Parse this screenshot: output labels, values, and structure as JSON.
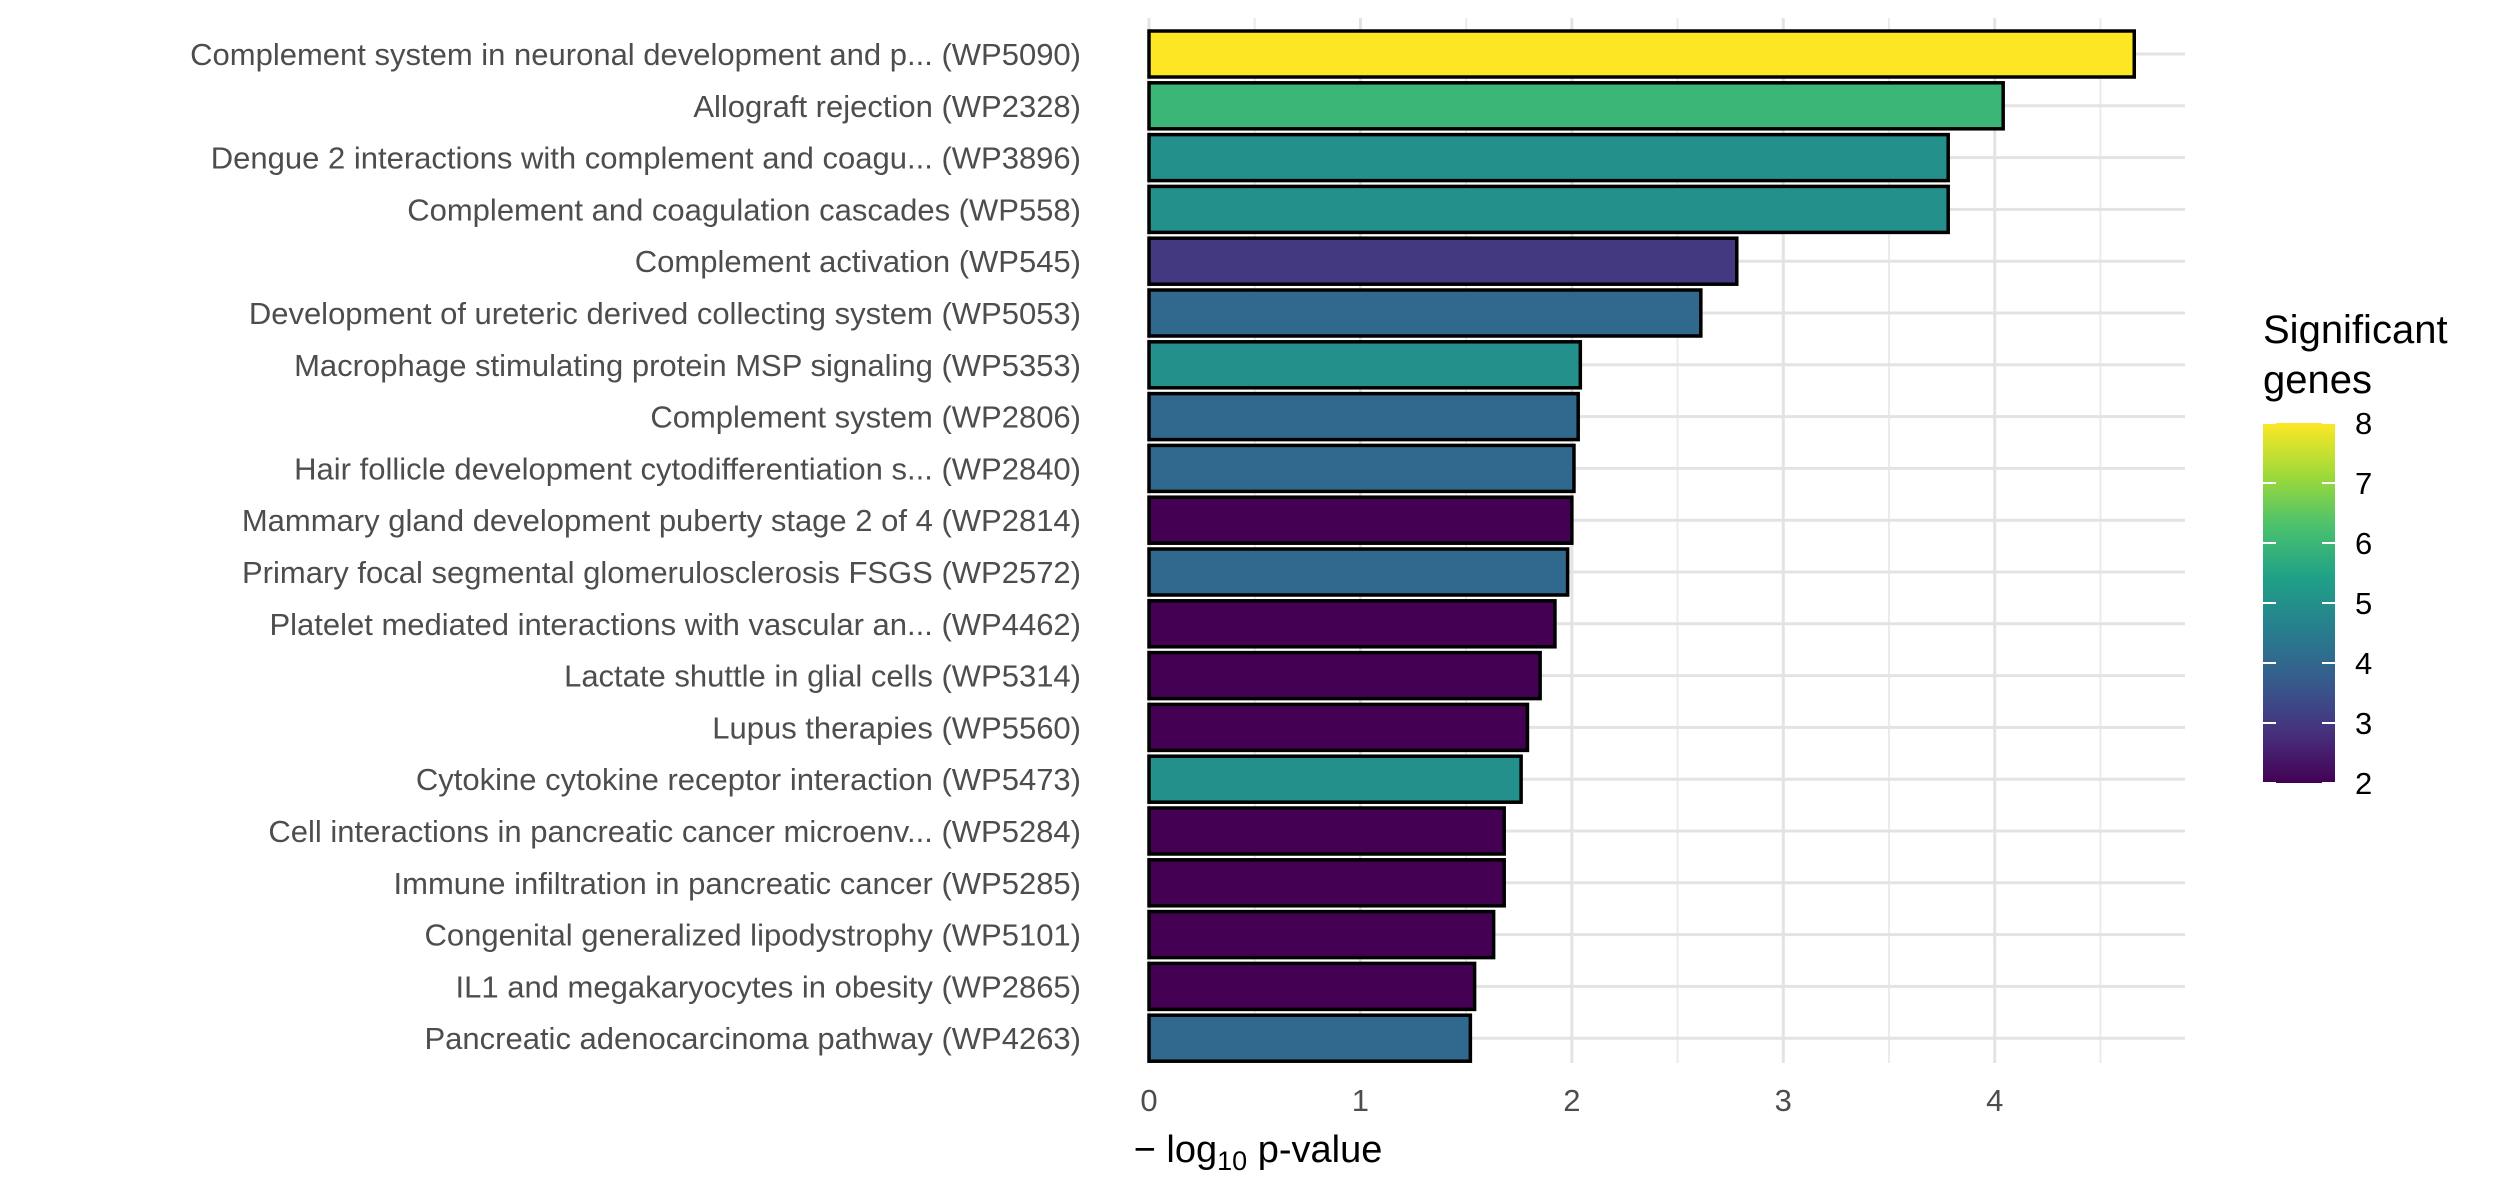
{
  "chart_data": {
    "type": "bar",
    "orientation": "horizontal",
    "categories": [
      "Complement system in neuronal development and p... (WP5090)",
      "Allograft rejection (WP2328)",
      "Dengue 2 interactions with complement and coagu... (WP3896)",
      "Complement and coagulation cascades (WP558)",
      "Complement activation (WP545)",
      "Development of ureteric derived collecting system (WP5053)",
      "Macrophage stimulating protein MSP signaling (WP5353)",
      "Complement system (WP2806)",
      "Hair follicle development cytodifferentiation s... (WP2840)",
      "Mammary gland development puberty stage 2 of 4 (WP2814)",
      "Primary focal segmental glomerulosclerosis FSGS  (WP2572)",
      "Platelet mediated interactions with vascular an... (WP4462)",
      "Lactate shuttle in glial cells (WP5314)",
      "Lupus therapies (WP5560)",
      "Cytokine cytokine receptor interaction (WP5473)",
      "Cell interactions in pancreatic cancer microenv... (WP5284)",
      "Immune infiltration in pancreatic cancer (WP5285)",
      "Congenital generalized lipodystrophy (WP5101)",
      "IL1 and megakaryocytes in obesity (WP2865)",
      "Pancreatic adenocarcinoma pathway (WP4263)"
    ],
    "values": [
      4.66,
      4.04,
      3.78,
      3.78,
      2.78,
      2.61,
      2.04,
      2.03,
      2.01,
      2.0,
      1.98,
      1.92,
      1.85,
      1.79,
      1.76,
      1.68,
      1.68,
      1.63,
      1.54,
      1.52
    ],
    "significant_genes": [
      8,
      6,
      5,
      5,
      3,
      4,
      5,
      4,
      4,
      2,
      4,
      2,
      2,
      2,
      5,
      2,
      2,
      2,
      2,
      4
    ],
    "xlabel_prefix": "− log",
    "xlabel_subscript": "10",
    "xlabel_suffix": " p-value",
    "ylabel": "",
    "xlim": [
      0,
      4.9
    ],
    "xticks": [
      0,
      1,
      2,
      3,
      4
    ],
    "grid": true,
    "legend": {
      "title_line1": "Significant",
      "title_line2": "genes",
      "position": "right",
      "min": 2,
      "max": 8,
      "ticks": [
        2,
        3,
        4,
        5,
        6,
        7,
        8
      ]
    },
    "colormap": "viridis",
    "bar_outline_color": "#000000"
  }
}
